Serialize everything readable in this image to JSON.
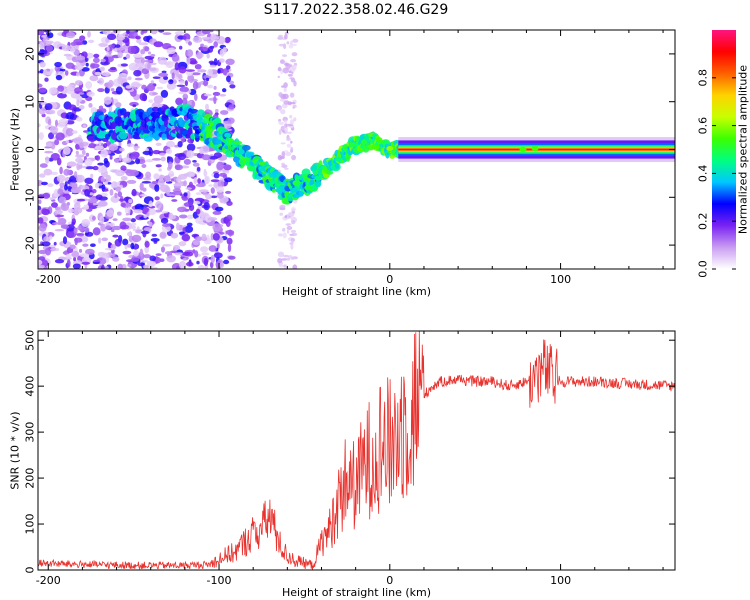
{
  "title": "S117.2022.358.02.46.G29",
  "chart_data": [
    {
      "type": "heatmap",
      "xlabel": "Height of straight line (km)",
      "ylabel": "Frequency (Hz)",
      "xlim": [
        -206,
        167
      ],
      "ylim": [
        -25,
        25
      ],
      "x_ticks": [
        -200,
        -100,
        0,
        100
      ],
      "y_ticks": [
        -20,
        -10,
        0,
        10,
        20
      ],
      "colorbar": {
        "label": "Normalized spectral amplitude",
        "ticks": [
          0.0,
          0.2,
          0.4,
          0.6,
          0.8
        ],
        "range": [
          0,
          1
        ],
        "colormap": [
          "#ffffff",
          "#c99cf2",
          "#7a22f2",
          "#0000ff",
          "#00c8ff",
          "#00ff80",
          "#3cff00",
          "#c8ff00",
          "#ffd200",
          "#ff6000",
          "#ff0000",
          "#ff1480"
        ]
      },
      "ridge": {
        "x": [
          -170,
          -160,
          -150,
          -120,
          -100,
          -90,
          -80,
          -70,
          -60,
          -50,
          -45,
          -40,
          -30,
          -20,
          -10,
          0,
          10,
          40,
          80,
          100,
          167
        ],
        "y": [
          5,
          5,
          5,
          6,
          3,
          0,
          -3,
          -6,
          -9,
          -7,
          -6,
          -5,
          -2,
          1,
          2,
          0,
          0,
          0,
          0,
          0,
          0
        ]
      },
      "grid": false
    },
    {
      "type": "line",
      "xlabel": "Height of straight line (km)",
      "ylabel": "SNR (10 * v/v)",
      "xlim": [
        -206,
        167
      ],
      "ylim": [
        0,
        520
      ],
      "x_ticks": [
        -200,
        -100,
        0,
        100
      ],
      "y_ticks": [
        0,
        100,
        200,
        300,
        400,
        500
      ],
      "series": [
        {
          "color": "#e8322e",
          "x": [
            -206,
            -180,
            -150,
            -120,
            -105,
            -100,
            -90,
            -80,
            -75,
            -70,
            -65,
            -60,
            -55,
            -50,
            -45,
            -40,
            -35,
            -30,
            -25,
            -20,
            -15,
            -10,
            -5,
            0,
            5,
            10,
            15,
            20,
            25,
            30,
            40,
            50,
            60,
            70,
            80,
            85,
            90,
            95,
            100,
            120,
            140,
            167
          ],
          "y": [
            15,
            12,
            10,
            10,
            12,
            25,
            40,
            80,
            90,
            120,
            60,
            30,
            20,
            15,
            10,
            60,
            90,
            150,
            200,
            180,
            230,
            250,
            280,
            270,
            300,
            330,
            360,
            380,
            400,
            410,
            415,
            410,
            410,
            400,
            410,
            420,
            440,
            420,
            410,
            410,
            405,
            400
          ]
        }
      ],
      "grid": false
    }
  ]
}
